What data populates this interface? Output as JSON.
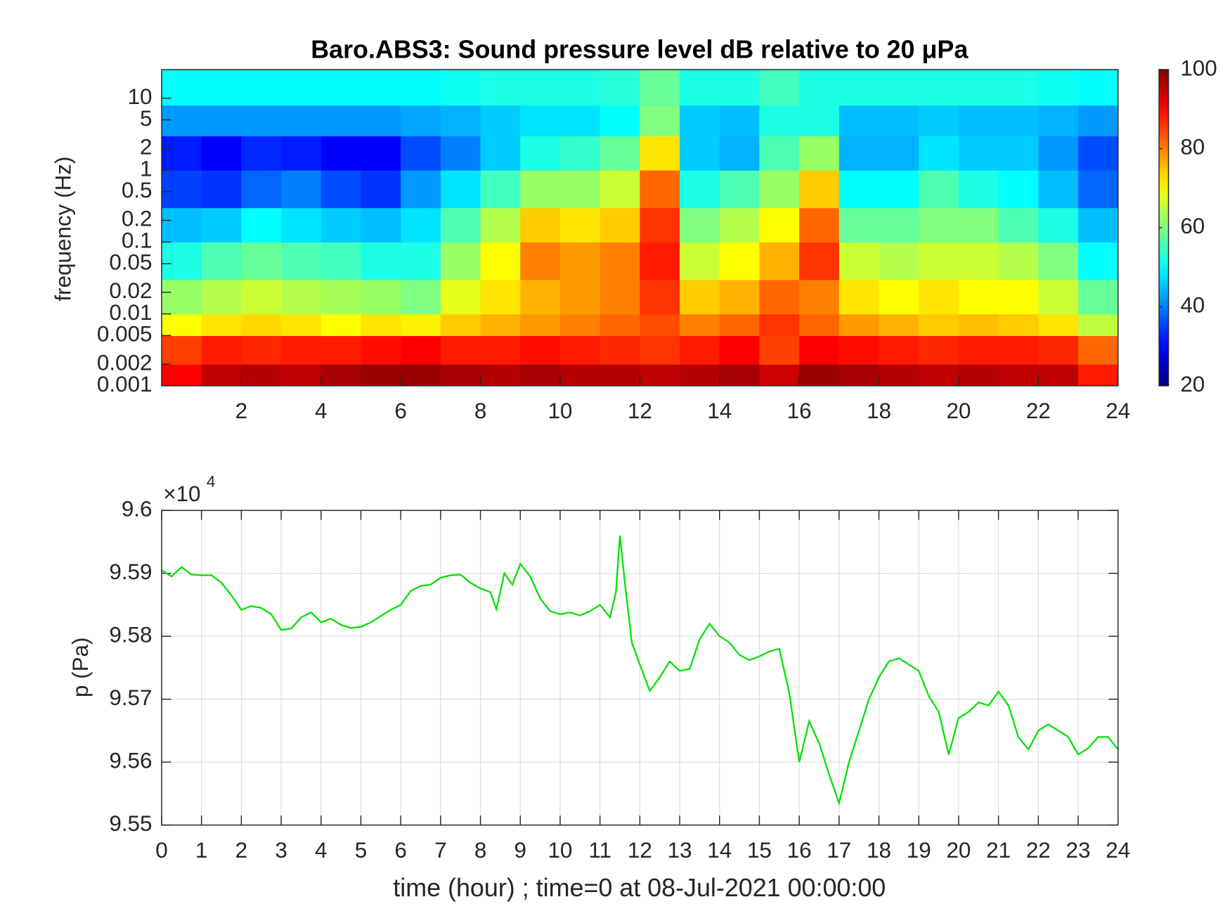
{
  "chart_data": [
    {
      "type": "heatmap",
      "title": "Baro.ABS3: Sound pressure level dB relative to 20 μPa",
      "ylabel": "frequency (Hz)",
      "yscale": "log",
      "colormap": "jet",
      "xlim": [
        0,
        24
      ],
      "xticks": [
        2,
        4,
        6,
        8,
        10,
        12,
        14,
        16,
        18,
        20,
        22,
        24
      ],
      "ylim": [
        0.001,
        25
      ],
      "yticks": [
        0.001,
        0.002,
        0.005,
        0.01,
        0.02,
        0.05,
        0.1,
        0.2,
        0.5,
        1,
        2,
        5,
        10
      ],
      "clim": [
        20,
        100
      ],
      "cticks": [
        20,
        40,
        60,
        80,
        100
      ],
      "x_edges": [
        0,
        1,
        2,
        3,
        4,
        5,
        6,
        7,
        8,
        9,
        10,
        11,
        12,
        13,
        14,
        15,
        16,
        17,
        18,
        19,
        20,
        21,
        22,
        23,
        24
      ],
      "y_edges": [
        0.001,
        0.002,
        0.005,
        0.01,
        0.03,
        0.1,
        0.3,
        1,
        3,
        8,
        25
      ],
      "values": [
        [
          90,
          95,
          96,
          95,
          97,
          98,
          98,
          97,
          96,
          97,
          96,
          96,
          95,
          96,
          97,
          94,
          98,
          97,
          96,
          95,
          96,
          95,
          95,
          88
        ],
        [
          85,
          88,
          87,
          88,
          88,
          89,
          90,
          88,
          88,
          89,
          88,
          87,
          86,
          88,
          90,
          85,
          90,
          89,
          88,
          87,
          88,
          88,
          87,
          82
        ],
        [
          70,
          72,
          73,
          72,
          70,
          72,
          71,
          74,
          76,
          78,
          80,
          82,
          84,
          80,
          82,
          86,
          82,
          78,
          76,
          74,
          75,
          74,
          72,
          65
        ],
        [
          62,
          64,
          66,
          64,
          63,
          62,
          60,
          68,
          72,
          76,
          78,
          80,
          86,
          74,
          76,
          82,
          80,
          72,
          70,
          72,
          70,
          70,
          66,
          58
        ],
        [
          52,
          56,
          58,
          56,
          55,
          52,
          52,
          62,
          70,
          80,
          78,
          80,
          88,
          66,
          70,
          76,
          86,
          66,
          64,
          66,
          66,
          64,
          60,
          50
        ],
        [
          45,
          46,
          50,
          48,
          46,
          45,
          48,
          56,
          64,
          74,
          72,
          74,
          86,
          60,
          64,
          70,
          82,
          58,
          58,
          60,
          60,
          56,
          52,
          45
        ],
        [
          35,
          34,
          38,
          40,
          36,
          34,
          42,
          48,
          55,
          62,
          62,
          66,
          82,
          52,
          56,
          62,
          74,
          50,
          50,
          56,
          52,
          50,
          45,
          38
        ],
        [
          32,
          30,
          33,
          32,
          30,
          30,
          36,
          40,
          46,
          52,
          54,
          58,
          72,
          46,
          44,
          56,
          62,
          44,
          44,
          48,
          46,
          46,
          42,
          36
        ],
        [
          42,
          42,
          42,
          42,
          42,
          42,
          43,
          44,
          46,
          48,
          48,
          50,
          60,
          46,
          45,
          52,
          52,
          45,
          45,
          46,
          45,
          45,
          44,
          42
        ],
        [
          50,
          50,
          50,
          50,
          50,
          50,
          50,
          51,
          52,
          52,
          52,
          53,
          58,
          52,
          52,
          55,
          52,
          52,
          52,
          52,
          52,
          52,
          51,
          50
        ]
      ]
    },
    {
      "type": "line",
      "xlabel": "time (hour) ; time=0 at 08-Jul-2021 00:00:00",
      "ylabel": "p (Pa)",
      "axis_multiplier": "×10",
      "axis_multiplier_exponent": "4",
      "color": "#00e000",
      "grid": true,
      "xlim": [
        0,
        24
      ],
      "xticks": [
        0,
        1,
        2,
        3,
        4,
        5,
        6,
        7,
        8,
        9,
        10,
        11,
        12,
        13,
        14,
        15,
        16,
        17,
        18,
        19,
        20,
        21,
        22,
        23,
        24
      ],
      "ylim": [
        95500,
        96000
      ],
      "yticks": [
        {
          "value": 95500,
          "label": "9.55"
        },
        {
          "value": 95600,
          "label": "9.56"
        },
        {
          "value": 95700,
          "label": "9.57"
        },
        {
          "value": 95800,
          "label": "9.58"
        },
        {
          "value": 95900,
          "label": "9.59"
        },
        {
          "value": 96000,
          "label": "9.6"
        }
      ],
      "x": [
        0,
        0.25,
        0.5,
        0.75,
        1,
        1.25,
        1.5,
        1.75,
        2,
        2.25,
        2.5,
        2.75,
        3,
        3.25,
        3.5,
        3.75,
        4,
        4.25,
        4.5,
        4.75,
        5,
        5.25,
        5.5,
        5.75,
        6,
        6.25,
        6.5,
        6.75,
        7,
        7.25,
        7.5,
        7.75,
        8,
        8.25,
        8.4,
        8.6,
        8.8,
        9,
        9.25,
        9.5,
        9.75,
        10,
        10.25,
        10.5,
        10.75,
        11,
        11.25,
        11.4,
        11.5,
        11.65,
        11.8,
        12,
        12.25,
        12.5,
        12.75,
        13,
        13.25,
        13.5,
        13.75,
        14,
        14.25,
        14.5,
        14.75,
        15,
        15.25,
        15.5,
        15.75,
        16,
        16.25,
        16.5,
        16.75,
        17,
        17.25,
        17.5,
        17.75,
        18,
        18.25,
        18.5,
        18.75,
        19,
        19.25,
        19.5,
        19.75,
        20,
        20.25,
        20.5,
        20.75,
        21,
        21.25,
        21.5,
        21.75,
        22,
        22.25,
        22.5,
        22.75,
        23,
        23.25,
        23.5,
        23.75,
        24
      ],
      "values": [
        95905,
        95895,
        95910,
        95898,
        95897,
        95897,
        95885,
        95865,
        95842,
        95848,
        95845,
        95835,
        95810,
        95812,
        95830,
        95838,
        95822,
        95828,
        95818,
        95813,
        95815,
        95822,
        95832,
        95842,
        95850,
        95872,
        95880,
        95882,
        95893,
        95897,
        95898,
        95885,
        95876,
        95870,
        95843,
        95900,
        95882,
        95915,
        95895,
        95860,
        95840,
        95835,
        95838,
        95833,
        95840,
        95850,
        95830,
        95870,
        95960,
        95870,
        95790,
        95755,
        95713,
        95735,
        95760,
        95745,
        95748,
        95795,
        95820,
        95800,
        95790,
        95770,
        95762,
        95768,
        95776,
        95780,
        95710,
        95600,
        95665,
        95630,
        95580,
        95535,
        95600,
        95650,
        95700,
        95735,
        95760,
        95765,
        95755,
        95745,
        95705,
        95680,
        95612,
        95670,
        95680,
        95695,
        95690,
        95712,
        95690,
        95640,
        95620,
        95650,
        95660,
        95650,
        95640,
        95612,
        95622,
        95640,
        95640,
        95620
      ]
    }
  ]
}
